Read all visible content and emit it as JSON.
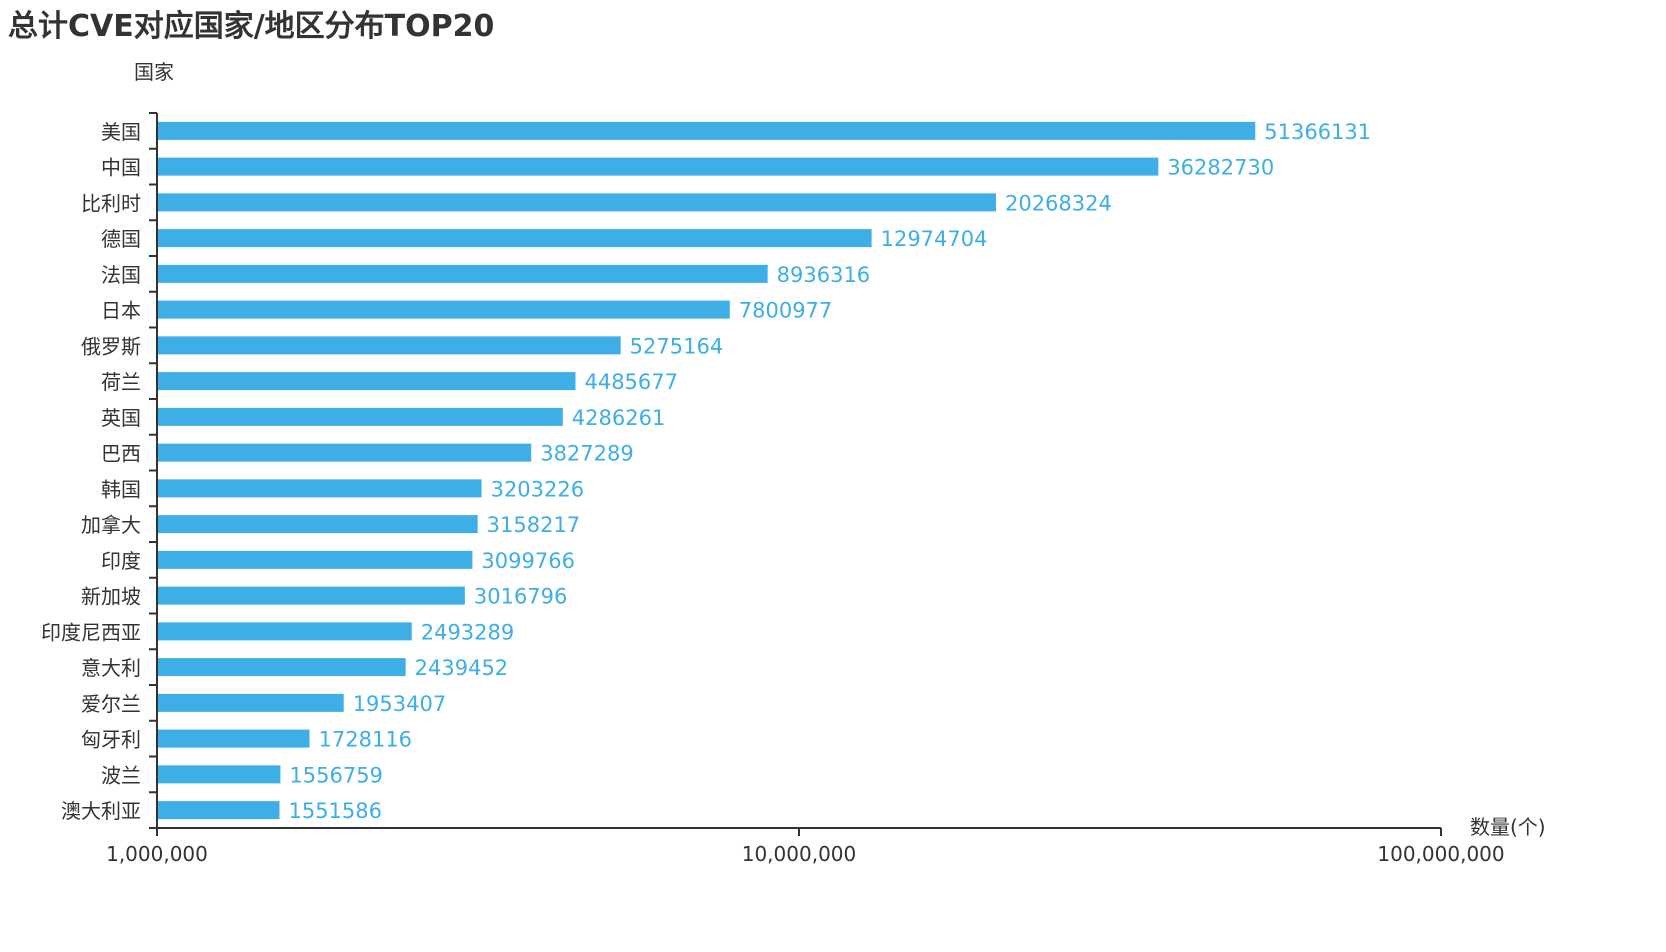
{
  "chart_data": {
    "type": "bar",
    "orientation": "horizontal",
    "title": "总计CVE对应国家/地区分布TOP20",
    "ylabel": "国家",
    "xlabel": "数量(个)",
    "xscale": "log",
    "xlim": [
      1000000,
      100000000
    ],
    "xticks": [
      "1,000,000",
      "10,000,000",
      "100,000,000"
    ],
    "xtick_values": [
      1000000,
      10000000,
      100000000
    ],
    "bar_color": "#3daee6",
    "categories": [
      "美国",
      "中国",
      "比利时",
      "德国",
      "法国",
      "日本",
      "俄罗斯",
      "荷兰",
      "英国",
      "巴西",
      "韩国",
      "加拿大",
      "印度",
      "新加坡",
      "印度尼西亚",
      "意大利",
      "爱尔兰",
      "匈牙利",
      "波兰",
      "澳大利亚"
    ],
    "values": [
      51366131,
      36282730,
      20268324,
      12974704,
      8936316,
      7800977,
      5275164,
      4485677,
      4286261,
      3827289,
      3203226,
      3158217,
      3099766,
      3016796,
      2493289,
      2439452,
      1953407,
      1728116,
      1556759,
      1551586
    ]
  }
}
